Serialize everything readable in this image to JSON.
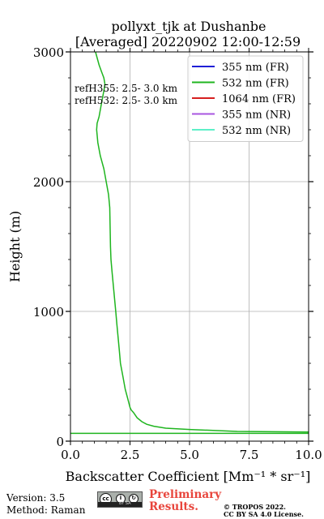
{
  "chart_data": {
    "type": "line",
    "title": "pollyxt_tjk at Dushanbe",
    "subtitle": "[Averaged] 20220902 12:00-12:59",
    "xlabel": "Backscatter Coefficient [Mm⁻¹ * sr⁻¹]",
    "ylabel": "Height (m)",
    "xlim": [
      0,
      10
    ],
    "ylim": [
      0,
      3000
    ],
    "xticks": [
      0,
      2.5,
      5,
      7.5,
      10
    ],
    "xtick_labels": [
      "0.0",
      "2.5",
      "5.0",
      "7.5",
      "10.0"
    ],
    "yticks": [
      0,
      1000,
      2000,
      3000
    ],
    "ytick_labels": [
      "0",
      "1000",
      "2000",
      "3000"
    ],
    "grid": true,
    "legend_position": "top-right",
    "annotations": [
      "refH355:  2.5- 3.0 km",
      "refH532:  2.5- 3.0 km"
    ],
    "series": [
      {
        "name": "355 nm (FR)",
        "color": "#1f1fd6",
        "x": [],
        "y": []
      },
      {
        "name": "532 nm (FR)",
        "color": "#1fb51f",
        "x": [
          10.0,
          7.0,
          5.0,
          4.0,
          3.5,
          3.2,
          3.0,
          2.8,
          2.65,
          2.55,
          2.5,
          2.4,
          2.3,
          2.2,
          2.1,
          2.05,
          2.0,
          1.95,
          1.9,
          1.85,
          1.8,
          1.75,
          1.7,
          1.68,
          1.67,
          1.66,
          1.65,
          1.6,
          1.5,
          1.4,
          1.25,
          1.15,
          1.1,
          1.12,
          1.2,
          1.3,
          1.4,
          1.45,
          1.4,
          1.3,
          1.2,
          1.05
        ],
        "y": [
          70,
          75,
          90,
          100,
          115,
          130,
          150,
          180,
          220,
          240,
          260,
          330,
          400,
          500,
          600,
          700,
          800,
          900,
          1000,
          1100,
          1200,
          1300,
          1400,
          1500,
          1600,
          1700,
          1800,
          1900,
          2000,
          2100,
          2200,
          2300,
          2400,
          2450,
          2500,
          2600,
          2700,
          2750,
          2800,
          2850,
          2900,
          3000
        ]
      },
      {
        "name": "1064 nm (FR)",
        "color": "#d61f1f",
        "x": [],
        "y": []
      },
      {
        "name": "355 nm (NR)",
        "color": "#a855e0",
        "x": [],
        "y": []
      },
      {
        "name": "532 nm (NR)",
        "color": "#5ef0c8",
        "x": [],
        "y": []
      }
    ],
    "baseline_line": {
      "color": "#1fb51f",
      "y": 60,
      "x": [
        0,
        10
      ]
    }
  },
  "footer": {
    "version": "Version: 3.5",
    "method": "Method: Raman",
    "preliminary_line1": "Preliminary",
    "preliminary_line2": "Results.",
    "copyright_line1": "© TROPOS 2022.",
    "copyright_line2": "CC BY SA 4.0 License.",
    "license_badge_text": "BY SA"
  }
}
